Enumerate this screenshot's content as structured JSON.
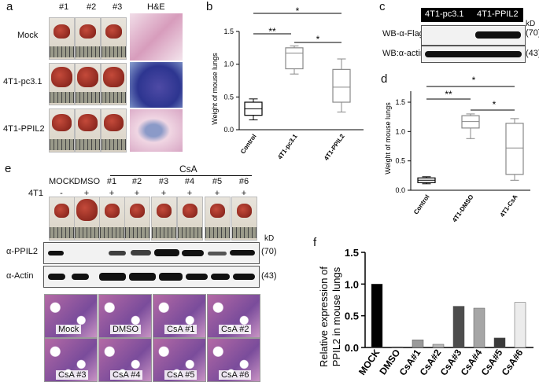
{
  "figure": {
    "panel_labels": {
      "a": "a",
      "b": "b",
      "c": "c",
      "d": "d",
      "e": "e",
      "f": "f"
    }
  },
  "panel_a": {
    "columns": [
      "#1",
      "#2",
      "#3",
      "H&E"
    ],
    "rows": [
      "Mock",
      "4T1-pc3.1",
      "4T1-PPIL2"
    ]
  },
  "panel_b": {
    "ylabel": "Weight of mouse lungs",
    "yticks": [
      "0.0",
      "0.5",
      "1.0",
      "1.5"
    ],
    "categories": [
      "Control",
      "4T1-pc3.1",
      "4T1-PPIL2"
    ],
    "sig": [
      "**",
      "*",
      "*"
    ]
  },
  "panel_c": {
    "headers": [
      "4T1-pc3.1",
      "4T1-PPIL2"
    ],
    "kd": "kD",
    "rows": [
      {
        "label": "WB-α-Flag",
        "kd": "(70)"
      },
      {
        "label": "WB:α-actin",
        "kd": "(43)"
      }
    ]
  },
  "panel_d": {
    "ylabel": "Weight of mouse lungs",
    "yticks": [
      "0.0",
      "0.5",
      "1.0",
      "1.5"
    ],
    "categories": [
      "Control",
      "4T1-DMSO",
      "4T1-CsA"
    ],
    "sig": [
      "**",
      "*",
      "*"
    ]
  },
  "panel_e": {
    "group_label": "CsA",
    "cols": [
      "MOCK",
      "DMSO",
      "#1",
      "#2",
      "#3",
      "#4",
      "#5",
      "#6"
    ],
    "row_label": "4T1",
    "signs": [
      "-",
      "+",
      "+",
      "+",
      "+",
      "+",
      "+",
      "+"
    ],
    "kd": "kD",
    "blots": [
      {
        "label": "α-PPIL2",
        "kd": "(70)"
      },
      {
        "label": "α-Actin",
        "kd": "(43)"
      }
    ],
    "histo_row1": [
      "Mock",
      "DMSO",
      "CsA #1",
      "CsA #2"
    ],
    "histo_row2": [
      "CsA #3",
      "CsA #4",
      "CsA #5",
      "CsA #6"
    ]
  },
  "chart_data": [
    {
      "panel": "b",
      "type": "box",
      "categories": [
        "Control",
        "4T1-pc3.1",
        "4T1-PPIL2"
      ],
      "ylabel": "Weight of mouse lungs",
      "ylim": [
        0,
        1.5
      ],
      "boxes": [
        {
          "min": 0.15,
          "q1": 0.22,
          "median": 0.32,
          "q3": 0.42,
          "max": 0.47
        },
        {
          "min": 0.85,
          "q1": 0.93,
          "median": 1.17,
          "q3": 1.25,
          "max": 1.28
        },
        {
          "min": 0.27,
          "q1": 0.42,
          "median": 0.65,
          "q3": 0.92,
          "max": 1.08
        }
      ]
    },
    {
      "panel": "d",
      "type": "box",
      "categories": [
        "Control",
        "4T1-DMSO",
        "4T1-CsA"
      ],
      "ylabel": "Weight of mouse lungs",
      "ylim": [
        0,
        1.5
      ],
      "boxes": [
        {
          "min": 0.11,
          "q1": 0.13,
          "median": 0.17,
          "q3": 0.21,
          "max": 0.23
        },
        {
          "min": 0.88,
          "q1": 1.06,
          "median": 1.17,
          "q3": 1.27,
          "max": 1.3
        },
        {
          "min": 0.17,
          "q1": 0.27,
          "median": 0.72,
          "q3": 1.14,
          "max": 1.22
        }
      ]
    },
    {
      "panel": "f",
      "type": "bar",
      "categories": [
        "MOCK",
        "DMSO",
        "CsA#1",
        "CsA#2",
        "CsA#3",
        "CsA#4",
        "CsA#5",
        "CsA#6"
      ],
      "values": [
        1.0,
        0.01,
        0.12,
        0.05,
        0.65,
        0.62,
        0.15,
        0.71
      ],
      "colors": [
        "#000000",
        "#1a1a1a",
        "#9a9a9a",
        "#b8b8b8",
        "#4d4d4d",
        "#a6a6a6",
        "#3a3a3a",
        "#ececec"
      ],
      "ylabel": "Relative expression of\nPPIL2 in mouse lungs",
      "yticks": [
        "0.0",
        "0.5",
        "1.0",
        "1.5"
      ],
      "ylim": [
        0,
        1.5
      ]
    }
  ]
}
